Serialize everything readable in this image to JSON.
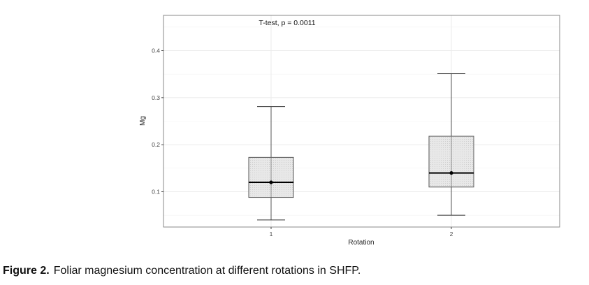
{
  "chart_data": {
    "type": "box",
    "annotation": "T-test, p = 0.0011",
    "xlabel": "Rotation",
    "ylabel": "Mg",
    "categories": [
      "1",
      "2"
    ],
    "ylim": [
      0.025,
      0.475
    ],
    "yticks": [
      0.1,
      0.2,
      0.3,
      0.4
    ],
    "ytick_labels": [
      "0.1",
      "0.2",
      "0.3",
      "0.4"
    ],
    "grid": true,
    "boxes": [
      {
        "category": "1",
        "whisker_low": 0.04,
        "q1": 0.088,
        "median": 0.12,
        "q3": 0.173,
        "whisker_high": 0.281,
        "mean": 0.12
      },
      {
        "category": "2",
        "whisker_low": 0.05,
        "q1": 0.11,
        "median": 0.14,
        "q3": 0.218,
        "whisker_high": 0.351,
        "mean": 0.14
      }
    ],
    "colors": {
      "box_fill": "#e6e6e6",
      "box_stroke": "#555555",
      "grid": "#ebebeb",
      "panel_border": "#888888",
      "median": "#000000"
    }
  },
  "caption": {
    "lead": "Figure 2.",
    "text": "Foliar magnesium concentration at different rotations in SHFP."
  }
}
